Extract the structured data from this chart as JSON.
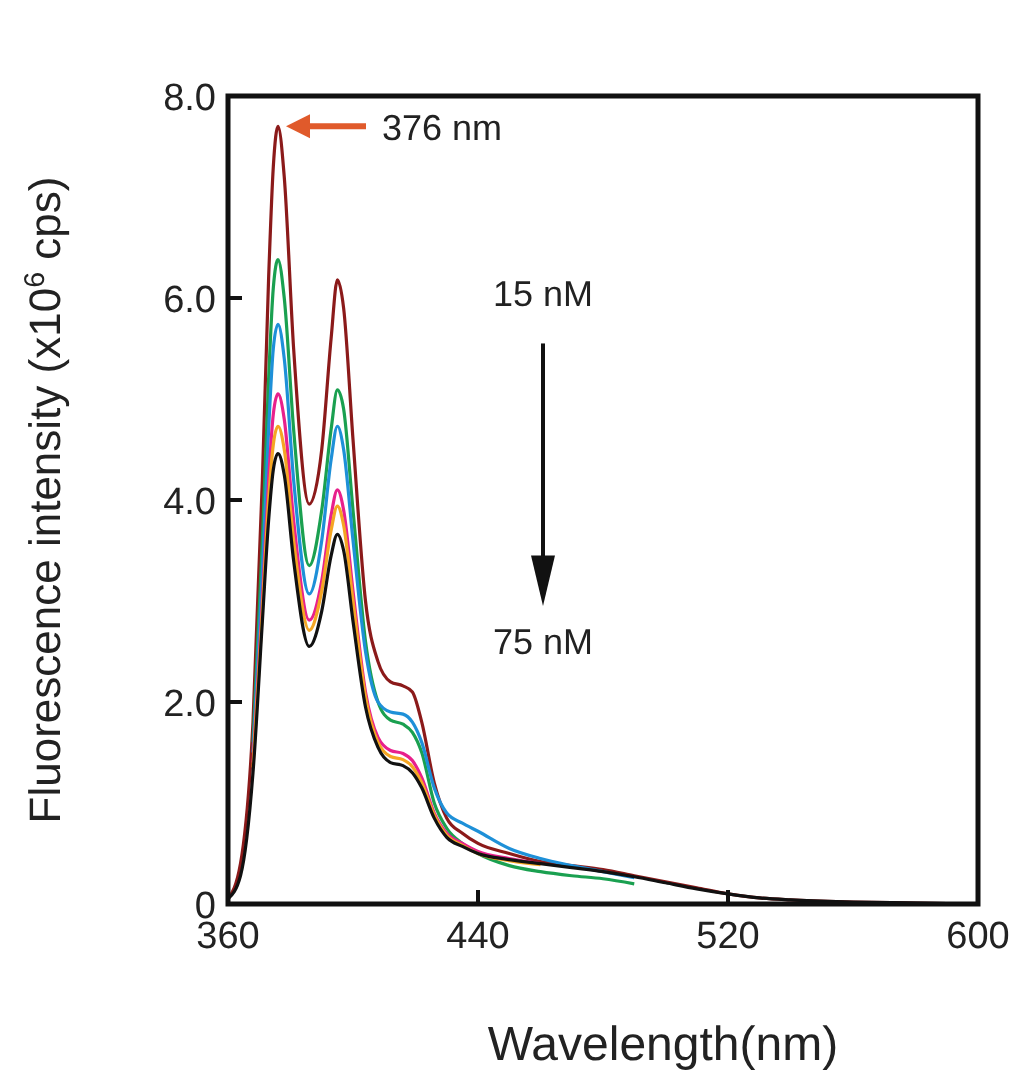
{
  "chart_data": {
    "type": "line",
    "xlabel": "Wavelength(nm)",
    "ylabel": "Fluorescence intensity (x10$^{6}$ cps)",
    "x": [
      360,
      364,
      368,
      371,
      373,
      374.5,
      376,
      378,
      381,
      386,
      390,
      393,
      395,
      397,
      400,
      404,
      408,
      412,
      416,
      419,
      422,
      426,
      430,
      435,
      440,
      450,
      460,
      470,
      480,
      490,
      500,
      510,
      520,
      530,
      540,
      560,
      580,
      600
    ],
    "xlim": [
      360,
      600
    ],
    "xticks": [
      360,
      440,
      520,
      600
    ],
    "ylim": [
      0,
      8
    ],
    "yticks": [
      {
        "value": 0,
        "label": "0"
      },
      {
        "value": 2,
        "label": "2.0"
      },
      {
        "value": 4,
        "label": "4.0"
      },
      {
        "value": 6,
        "label": "6.0"
      },
      {
        "value": 8,
        "label": "8.0"
      }
    ],
    "grid": false,
    "marker": "none",
    "line_style": "solid",
    "series": [
      {
        "color": "#8b1a1a",
        "values": [
          0.05,
          0.4,
          1.8,
          4.2,
          6.2,
          7.3,
          7.7,
          7.2,
          5.5,
          3.96,
          4.5,
          5.6,
          6.18,
          5.9,
          4.6,
          3.0,
          2.4,
          2.2,
          2.16,
          2.1,
          1.8,
          1.2,
          0.85,
          0.7,
          0.6,
          0.5,
          0.42,
          0.38,
          0.34,
          0.28,
          0.22,
          0.16,
          0.1,
          0.06,
          0.04,
          0.02,
          0.01,
          0
        ]
      },
      {
        "color": "#1aa050",
        "values": [
          null,
          null,
          1.6,
          3.6,
          5.2,
          6.1,
          6.38,
          6.0,
          4.7,
          3.35,
          3.9,
          4.7,
          5.09,
          4.9,
          3.9,
          2.6,
          2.0,
          1.82,
          1.78,
          1.7,
          1.5,
          1.0,
          0.75,
          0.6,
          0.5,
          0.38,
          0.32,
          0.28,
          0.25,
          0.2,
          null,
          null,
          null,
          null,
          null,
          null,
          null,
          null
        ]
      },
      {
        "color": "#1e90d8",
        "values": [
          null,
          null,
          1.5,
          3.3,
          4.7,
          5.5,
          5.74,
          5.4,
          4.2,
          3.07,
          3.6,
          4.4,
          4.73,
          4.5,
          3.6,
          2.5,
          2.0,
          1.9,
          1.88,
          1.8,
          1.6,
          1.15,
          0.9,
          0.8,
          0.72,
          0.55,
          0.45,
          0.38,
          0.32,
          0.26,
          null,
          null,
          null,
          null,
          null,
          null,
          null,
          null
        ]
      },
      {
        "color": "#e8208c",
        "values": [
          null,
          null,
          1.4,
          3.0,
          4.2,
          4.85,
          5.05,
          4.8,
          3.8,
          2.81,
          3.2,
          3.85,
          4.1,
          3.9,
          3.1,
          2.1,
          1.65,
          1.52,
          1.49,
          1.42,
          1.25,
          0.9,
          0.7,
          0.6,
          0.52,
          0.45,
          0.4,
          null,
          null,
          null,
          null,
          null,
          null,
          null,
          null,
          null,
          null,
          null
        ]
      },
      {
        "color": "#f5a623",
        "values": [
          null,
          null,
          1.35,
          2.9,
          4.0,
          4.55,
          4.73,
          4.5,
          3.6,
          2.71,
          3.1,
          3.7,
          3.94,
          3.75,
          3.0,
          2.05,
          1.6,
          1.46,
          1.43,
          1.36,
          1.2,
          0.88,
          0.68,
          0.58,
          0.5,
          0.43,
          0.39,
          null,
          null,
          null,
          null,
          null,
          null,
          null,
          null,
          null,
          null,
          null
        ]
      },
      {
        "color": "#111111",
        "values": [
          0.05,
          0.28,
          1.3,
          2.8,
          3.8,
          4.3,
          4.46,
          4.25,
          3.4,
          2.55,
          2.9,
          3.45,
          3.66,
          3.5,
          2.8,
          1.95,
          1.55,
          1.4,
          1.37,
          1.3,
          1.15,
          0.85,
          0.66,
          0.57,
          0.5,
          0.44,
          0.4,
          0.36,
          0.32,
          0.27,
          0.21,
          0.15,
          0.1,
          0.06,
          0.04,
          0.02,
          0.01,
          0
        ]
      }
    ],
    "annotations": [
      {
        "text": "376 nm",
        "x": 376,
        "y": 7.7
      },
      "15 nM",
      "75 nM"
    ]
  }
}
